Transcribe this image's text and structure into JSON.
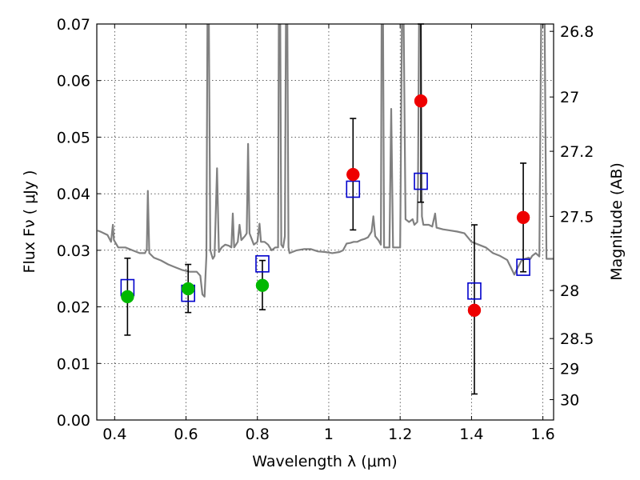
{
  "chart_data": {
    "type": "scatter",
    "xlabel": "Wavelength  λ (μm)",
    "ylabel": "Flux  Fν  ( μJy )",
    "y2label": "Magnitude (AB)",
    "xlim": [
      0.35,
      1.63
    ],
    "ylim": [
      0.0,
      0.07
    ],
    "xticks": [
      0.4,
      0.6,
      0.8,
      1.0,
      1.2,
      1.4,
      1.6
    ],
    "xtick_labels": [
      "0.4",
      "0.6",
      "0.8",
      "1",
      "1.2",
      "1.4",
      "1.6"
    ],
    "yticks": [
      0.0,
      0.01,
      0.02,
      0.03,
      0.04,
      0.05,
      0.06,
      0.07
    ],
    "ytick_labels": [
      "0.00",
      "0.01",
      "0.02",
      "0.03",
      "0.04",
      "0.05",
      "0.06",
      "0.07"
    ],
    "y2ticks": [
      {
        "label": "26.8",
        "flux": 0.0687
      },
      {
        "label": "27",
        "flux": 0.0571
      },
      {
        "label": "27.2",
        "flux": 0.0475
      },
      {
        "label": "27.5",
        "flux": 0.036
      },
      {
        "label": "28",
        "flux": 0.0229
      },
      {
        "label": "28.5",
        "flux": 0.0144
      },
      {
        "label": "29",
        "flux": 0.0091
      },
      {
        "label": "30",
        "flux": 0.0036
      }
    ],
    "grid": true,
    "series": [
      {
        "kind": "spectrum-line",
        "color": "#808080",
        "points": [
          [
            0.352,
            0.0335
          ],
          [
            0.36,
            0.0333
          ],
          [
            0.37,
            0.033
          ],
          [
            0.38,
            0.0327
          ],
          [
            0.39,
            0.0315
          ],
          [
            0.395,
            0.0345
          ],
          [
            0.398,
            0.0318
          ],
          [
            0.41,
            0.0305
          ],
          [
            0.43,
            0.0305
          ],
          [
            0.45,
            0.03
          ],
          [
            0.47,
            0.0295
          ],
          [
            0.485,
            0.0295
          ],
          [
            0.49,
            0.0302
          ],
          [
            0.493,
            0.0405
          ],
          [
            0.497,
            0.0295
          ],
          [
            0.51,
            0.0287
          ],
          [
            0.53,
            0.0282
          ],
          [
            0.55,
            0.0275
          ],
          [
            0.57,
            0.027
          ],
          [
            0.59,
            0.0265
          ],
          [
            0.61,
            0.0262
          ],
          [
            0.63,
            0.0262
          ],
          [
            0.64,
            0.0255
          ],
          [
            0.646,
            0.0222
          ],
          [
            0.652,
            0.0218
          ],
          [
            0.657,
            0.029
          ],
          [
            0.66,
            0.07
          ],
          [
            0.664,
            0.07
          ],
          [
            0.668,
            0.03
          ],
          [
            0.675,
            0.0285
          ],
          [
            0.68,
            0.029
          ],
          [
            0.687,
            0.0445
          ],
          [
            0.692,
            0.0297
          ],
          [
            0.7,
            0.0305
          ],
          [
            0.71,
            0.031
          ],
          [
            0.72,
            0.0308
          ],
          [
            0.727,
            0.0305
          ],
          [
            0.731,
            0.0365
          ],
          [
            0.735,
            0.0305
          ],
          [
            0.745,
            0.0315
          ],
          [
            0.75,
            0.0345
          ],
          [
            0.755,
            0.0318
          ],
          [
            0.765,
            0.0325
          ],
          [
            0.77,
            0.033
          ],
          [
            0.774,
            0.0488
          ],
          [
            0.778,
            0.033
          ],
          [
            0.79,
            0.031
          ],
          [
            0.8,
            0.0315
          ],
          [
            0.806,
            0.0347
          ],
          [
            0.81,
            0.0315
          ],
          [
            0.82,
            0.0315
          ],
          [
            0.83,
            0.031
          ],
          [
            0.84,
            0.03
          ],
          [
            0.85,
            0.0305
          ],
          [
            0.858,
            0.0305
          ],
          [
            0.86,
            0.07
          ],
          [
            0.864,
            0.07
          ],
          [
            0.867,
            0.031
          ],
          [
            0.872,
            0.0305
          ],
          [
            0.877,
            0.0325
          ],
          [
            0.88,
            0.07
          ],
          [
            0.884,
            0.07
          ],
          [
            0.887,
            0.0305
          ],
          [
            0.89,
            0.0295
          ],
          [
            0.91,
            0.03
          ],
          [
            0.93,
            0.0302
          ],
          [
            0.95,
            0.0302
          ],
          [
            0.97,
            0.0298
          ],
          [
            0.99,
            0.0297
          ],
          [
            1.01,
            0.0295
          ],
          [
            1.03,
            0.0297
          ],
          [
            1.04,
            0.03
          ],
          [
            1.05,
            0.0312
          ],
          [
            1.06,
            0.0313
          ],
          [
            1.07,
            0.0315
          ],
          [
            1.08,
            0.0315
          ],
          [
            1.09,
            0.0318
          ],
          [
            1.1,
            0.032
          ],
          [
            1.11,
            0.0323
          ],
          [
            1.12,
            0.0333
          ],
          [
            1.125,
            0.036
          ],
          [
            1.13,
            0.0325
          ],
          [
            1.14,
            0.0317
          ],
          [
            1.146,
            0.031
          ],
          [
            1.148,
            0.07
          ],
          [
            1.152,
            0.07
          ],
          [
            1.155,
            0.0305
          ],
          [
            1.16,
            0.0305
          ],
          [
            1.17,
            0.0305
          ],
          [
            1.175,
            0.055
          ],
          [
            1.18,
            0.0305
          ],
          [
            1.19,
            0.0305
          ],
          [
            1.2,
            0.0305
          ],
          [
            1.205,
            0.07
          ],
          [
            1.21,
            0.07
          ],
          [
            1.215,
            0.0355
          ],
          [
            1.225,
            0.035
          ],
          [
            1.235,
            0.0355
          ],
          [
            1.24,
            0.0345
          ],
          [
            1.248,
            0.035
          ],
          [
            1.25,
            0.042
          ],
          [
            1.253,
            0.07
          ],
          [
            1.258,
            0.07
          ],
          [
            1.261,
            0.036
          ],
          [
            1.265,
            0.0345
          ],
          [
            1.27,
            0.0345
          ],
          [
            1.28,
            0.0345
          ],
          [
            1.29,
            0.0342
          ],
          [
            1.298,
            0.0365
          ],
          [
            1.302,
            0.034
          ],
          [
            1.32,
            0.0337
          ],
          [
            1.34,
            0.0335
          ],
          [
            1.36,
            0.0333
          ],
          [
            1.38,
            0.033
          ],
          [
            1.4,
            0.0315
          ],
          [
            1.42,
            0.031
          ],
          [
            1.44,
            0.0305
          ],
          [
            1.46,
            0.0295
          ],
          [
            1.48,
            0.029
          ],
          [
            1.5,
            0.0283
          ],
          [
            1.51,
            0.027
          ],
          [
            1.52,
            0.0257
          ],
          [
            1.53,
            0.027
          ],
          [
            1.54,
            0.0282
          ],
          [
            1.55,
            0.0285
          ],
          [
            1.56,
            0.0287
          ],
          [
            1.565,
            0.0285
          ],
          [
            1.57,
            0.029
          ],
          [
            1.58,
            0.0295
          ],
          [
            1.59,
            0.0289
          ],
          [
            1.595,
            0.07
          ],
          [
            1.605,
            0.07
          ],
          [
            1.61,
            0.0285
          ],
          [
            1.63,
            0.0285
          ]
        ]
      },
      {
        "kind": "model-squares",
        "color": "#0000cc",
        "points": [
          [
            0.436,
            0.0234
          ],
          [
            0.606,
            0.0224
          ],
          [
            0.814,
            0.0276
          ],
          [
            1.068,
            0.0408
          ],
          [
            1.258,
            0.0422
          ],
          [
            1.408,
            0.0228
          ],
          [
            1.545,
            0.027
          ]
        ]
      },
      {
        "kind": "observed-green",
        "color": "#00b800",
        "points": [
          {
            "x": 0.436,
            "y": 0.0218,
            "lo": 0.015,
            "hi": 0.0286
          },
          {
            "x": 0.606,
            "y": 0.0232,
            "lo": 0.019,
            "hi": 0.0275
          },
          {
            "x": 0.814,
            "y": 0.0238,
            "lo": 0.0195,
            "hi": 0.0282
          }
        ]
      },
      {
        "kind": "observed-red",
        "color": "#ee0000",
        "points": [
          {
            "x": 1.068,
            "y": 0.0434,
            "lo": 0.0336,
            "hi": 0.0533
          },
          {
            "x": 1.258,
            "y": 0.0564,
            "lo": 0.0385,
            "hi": 0.07
          },
          {
            "x": 1.408,
            "y": 0.0194,
            "lo": 0.0046,
            "hi": 0.0345
          },
          {
            "x": 1.545,
            "y": 0.0358,
            "lo": 0.0262,
            "hi": 0.0454
          }
        ]
      }
    ]
  }
}
